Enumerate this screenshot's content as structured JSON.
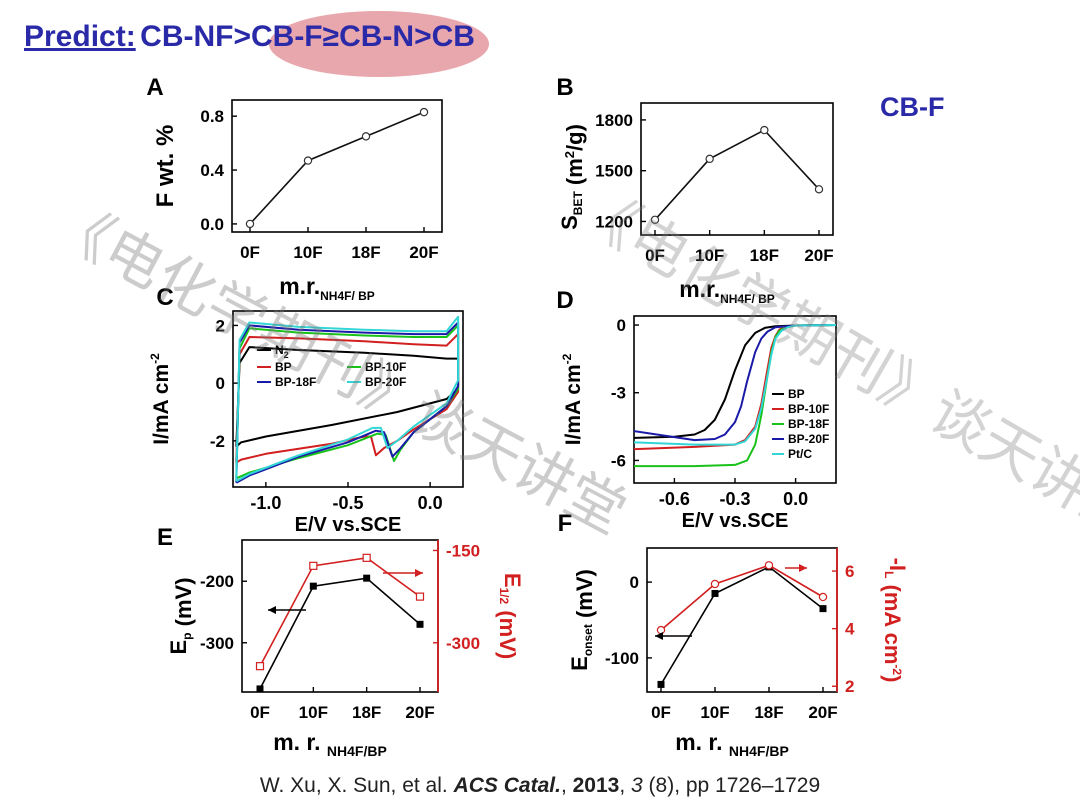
{
  "title": {
    "label": "Predict:",
    "text": "CB-NF>CB-F≥CB-N>CB",
    "highlight_color": "#e8a7ad",
    "color": "#2a2aa8"
  },
  "side_label": "CB-F",
  "watermark": "《电化学期刊》谈天讲堂",
  "citation": {
    "authors": "W. Xu, X. Sun, et al. ",
    "journal": "ACS Catal.",
    "sep1": ", ",
    "year": "2013",
    "sep2": ", ",
    "volume": "3",
    "rest": " (8), pp 1726–1729"
  },
  "chart_data": [
    {
      "panel": "A",
      "type": "line",
      "categories": [
        "0F",
        "10F",
        "18F",
        "20F"
      ],
      "series": [
        {
          "name": "F wt. %",
          "values": [
            0.0,
            0.47,
            0.65,
            0.83
          ],
          "color": "#000000",
          "marker": "open-circle"
        }
      ],
      "ylabel": "F wt. %",
      "xlabel": "m.r.",
      "xlabel_sub": "NH4F/ BP",
      "ylim": [
        -0.06,
        0.92
      ],
      "yticks": [
        0.0,
        0.4,
        0.8
      ],
      "ytick_labels": [
        "0.0",
        "0.4",
        "0.8"
      ]
    },
    {
      "panel": "B",
      "type": "line",
      "categories": [
        "0F",
        "10F",
        "18F",
        "20F"
      ],
      "series": [
        {
          "name": "S BET",
          "values": [
            1210,
            1570,
            1740,
            1390
          ],
          "color": "#000000",
          "marker": "open-circle"
        }
      ],
      "ylabel": "S",
      "ylabel_sub": "BET",
      "ylabel_unit": "(m2/g)",
      "xlabel": "m.r.",
      "xlabel_sub": "NH4F/ BP",
      "ylim": [
        1120,
        1900
      ],
      "yticks": [
        1200,
        1500,
        1800
      ],
      "ytick_labels": [
        "1200",
        "1500",
        "1800"
      ]
    },
    {
      "panel": "C",
      "type": "line",
      "xlabel": "E/V vs.SCE",
      "ylabel": "I/mA cm-2",
      "xlim": [
        -1.2,
        0.2
      ],
      "ylim": [
        -3.6,
        2.5
      ],
      "xticks": [
        -1.0,
        -0.5,
        0.0
      ],
      "xtick_labels": [
        "-1.0",
        "-0.5",
        "0.0"
      ],
      "yticks": [
        -2,
        0,
        2
      ],
      "ytick_labels": [
        "-2",
        "0",
        "2"
      ],
      "legend": [
        "N2",
        "BP",
        "BP-10F",
        "BP-18F",
        "BP-20F"
      ],
      "series": [
        {
          "name": "N2",
          "color": "#000000",
          "x": [
            -1.18,
            -1.16,
            -1.1,
            -0.8,
            -0.4,
            -0.1,
            0.1,
            0.17,
            0.17,
            0.1,
            -0.2,
            -0.6,
            -1.0,
            -1.15,
            -1.18
          ],
          "y": [
            -2.2,
            0.7,
            1.25,
            1.15,
            1.05,
            0.95,
            0.85,
            0.85,
            -0.2,
            -0.55,
            -1.0,
            -1.45,
            -1.85,
            -2.05,
            -2.2
          ]
        },
        {
          "name": "BP",
          "color": "#d21f1f",
          "x": [
            -1.18,
            -1.16,
            -1.1,
            -0.8,
            -0.4,
            -0.1,
            0.1,
            0.17,
            0.17,
            0.1,
            -0.1,
            -0.2,
            -0.28,
            -0.33,
            -0.36,
            -0.4,
            -0.6,
            -1.0,
            -1.15,
            -1.18
          ],
          "y": [
            -2.75,
            1.0,
            1.6,
            1.55,
            1.45,
            1.35,
            1.3,
            1.7,
            -0.3,
            -0.9,
            -1.6,
            -2.0,
            -2.25,
            -2.5,
            -1.85,
            -1.85,
            -2.1,
            -2.45,
            -2.65,
            -2.75
          ]
        },
        {
          "name": "BP-10F",
          "color": "#19c219",
          "x": [
            -1.18,
            -1.16,
            -1.1,
            -0.8,
            -0.4,
            -0.1,
            0.1,
            0.17,
            0.17,
            0.1,
            -0.1,
            -0.18,
            -0.22,
            -0.27,
            -0.32,
            -0.5,
            -0.8,
            -1.1,
            -1.18
          ],
          "y": [
            -3.3,
            1.2,
            1.9,
            1.75,
            1.65,
            1.6,
            1.6,
            2.0,
            -0.2,
            -0.8,
            -1.7,
            -2.3,
            -2.7,
            -1.8,
            -1.75,
            -2.15,
            -2.6,
            -3.1,
            -3.3
          ]
        },
        {
          "name": "BP-18F",
          "color": "#1a1aa8",
          "x": [
            -1.18,
            -1.16,
            -1.1,
            -0.8,
            -0.4,
            -0.1,
            0.1,
            0.17,
            0.17,
            0.1,
            -0.1,
            -0.18,
            -0.23,
            -0.28,
            -0.33,
            -0.5,
            -0.8,
            -1.1,
            -1.18
          ],
          "y": [
            -3.45,
            1.4,
            2.0,
            1.85,
            1.75,
            1.7,
            1.7,
            2.1,
            -0.1,
            -0.8,
            -1.7,
            -2.25,
            -2.55,
            -1.7,
            -1.65,
            -2.05,
            -2.55,
            -3.2,
            -3.45
          ]
        },
        {
          "name": "BP-20F",
          "color": "#33d6d6",
          "x": [
            -1.18,
            -1.16,
            -1.1,
            -0.8,
            -0.4,
            -0.1,
            0.1,
            0.17,
            0.17,
            0.1,
            -0.1,
            -0.2,
            -0.26,
            -0.3,
            -0.35,
            -0.5,
            -0.8,
            -1.1,
            -1.18
          ],
          "y": [
            -3.4,
            1.5,
            2.1,
            1.95,
            1.85,
            1.8,
            1.8,
            2.3,
            0.1,
            -0.7,
            -1.5,
            -2.0,
            -2.25,
            -1.55,
            -1.55,
            -1.95,
            -2.5,
            -3.15,
            -3.4
          ]
        }
      ]
    },
    {
      "panel": "D",
      "type": "line",
      "xlabel": "E/V vs.SCE",
      "ylabel": "I/mA cm-2",
      "xlim": [
        -0.8,
        0.2
      ],
      "ylim": [
        -7.0,
        0.4
      ],
      "xticks": [
        -0.6,
        -0.3,
        0.0
      ],
      "xtick_labels": [
        "-0.6",
        "-0.3",
        "0.0"
      ],
      "yticks": [
        0,
        -3,
        -6
      ],
      "ytick_labels": [
        "0",
        "-3",
        "-6"
      ],
      "legend": [
        "BP",
        "BP-10F",
        "BP-18F",
        "BP-20F",
        "Pt/C"
      ],
      "series": [
        {
          "name": "BP",
          "color": "#000000",
          "x": [
            -0.8,
            -0.6,
            -0.5,
            -0.45,
            -0.4,
            -0.35,
            -0.3,
            -0.25,
            -0.2,
            -0.15,
            -0.1,
            0.0,
            0.2
          ],
          "y": [
            -5.0,
            -4.95,
            -4.85,
            -4.65,
            -4.2,
            -3.3,
            -2.0,
            -0.9,
            -0.35,
            -0.12,
            -0.05,
            -0.02,
            0.0
          ]
        },
        {
          "name": "BP-10F",
          "color": "#d21f1f",
          "x": [
            -0.8,
            -0.5,
            -0.3,
            -0.25,
            -0.2,
            -0.17,
            -0.14,
            -0.12,
            -0.1,
            -0.08,
            -0.05,
            0.0,
            0.2
          ],
          "y": [
            -5.5,
            -5.4,
            -5.3,
            -5.1,
            -4.5,
            -3.5,
            -2.0,
            -1.0,
            -0.5,
            -0.2,
            -0.08,
            -0.02,
            0.0
          ]
        },
        {
          "name": "BP-18F",
          "color": "#19c219",
          "x": [
            -0.8,
            -0.5,
            -0.3,
            -0.24,
            -0.2,
            -0.17,
            -0.14,
            -0.12,
            -0.1,
            -0.08,
            -0.05,
            0.0,
            0.2
          ],
          "y": [
            -6.25,
            -6.25,
            -6.2,
            -6.0,
            -5.3,
            -4.0,
            -2.3,
            -1.2,
            -0.55,
            -0.25,
            -0.1,
            -0.02,
            0.0
          ]
        },
        {
          "name": "BP-20F",
          "color": "#1a1aa8",
          "x": [
            -0.8,
            -0.5,
            -0.4,
            -0.35,
            -0.3,
            -0.27,
            -0.24,
            -0.2,
            -0.17,
            -0.14,
            -0.1,
            0.0,
            0.2
          ],
          "y": [
            -4.7,
            -5.1,
            -5.05,
            -4.85,
            -4.3,
            -3.6,
            -2.5,
            -1.2,
            -0.6,
            -0.3,
            -0.1,
            -0.02,
            0.0
          ]
        },
        {
          "name": "Pt/C",
          "color": "#33d6d6",
          "x": [
            -0.8,
            -0.5,
            -0.3,
            -0.25,
            -0.2,
            -0.17,
            -0.14,
            -0.12,
            -0.1,
            -0.07,
            -0.04,
            0.0,
            0.2
          ],
          "y": [
            -5.2,
            -5.3,
            -5.3,
            -5.15,
            -4.6,
            -3.7,
            -2.3,
            -1.3,
            -0.6,
            -0.25,
            -0.1,
            -0.02,
            0.0
          ]
        }
      ]
    },
    {
      "panel": "E",
      "type": "line",
      "categories": [
        "0F",
        "10F",
        "18F",
        "20F"
      ],
      "xlabel": "m. r.",
      "xlabel_sub": "NH4F/BP",
      "ylabel": "E",
      "ylabel_sub": "p",
      "ylabel_unit": "(mV)",
      "ylim": [
        -380,
        -133
      ],
      "yticks": [
        -200,
        -300
      ],
      "ytick_labels": [
        "-200",
        "-300"
      ],
      "ylabel_right": "E",
      "ylabel_right_sub": "1/2",
      "ylabel_right_unit": "(mV)",
      "ylim_right": [
        -380,
        -133
      ],
      "yticks_right": [
        -150,
        -300
      ],
      "ytick_labels_right": [
        "-150",
        "-300"
      ],
      "series": [
        {
          "name": "Ep",
          "axis": "left",
          "color": "#000000",
          "marker": "filled-square",
          "values": [
            -375,
            -208,
            -195,
            -270
          ]
        },
        {
          "name": "E1/2",
          "axis": "right",
          "color": "#d21f1f",
          "marker": "open-square",
          "values": [
            -338,
            -175,
            -162,
            -225
          ]
        }
      ]
    },
    {
      "panel": "F",
      "type": "line",
      "categories": [
        "0F",
        "10F",
        "18F",
        "20F"
      ],
      "xlabel": "m. r.",
      "xlabel_sub": "NH4F/BP",
      "ylabel": "E",
      "ylabel_sub": "onset",
      "ylabel_unit": "(mV)",
      "ylim": [
        -145,
        45
      ],
      "yticks": [
        0,
        -100
      ],
      "ytick_labels": [
        "0",
        "-100"
      ],
      "ylabel_right": "-I",
      "ylabel_right_sub": "L",
      "ylabel_right_unit": "(mA cm-2)",
      "ylim_right": [
        1.8,
        6.8
      ],
      "yticks_right": [
        6,
        4,
        2
      ],
      "ytick_labels_right": [
        "6",
        "4",
        "2"
      ],
      "series": [
        {
          "name": "Eonset",
          "axis": "left",
          "color": "#000000",
          "marker": "filled-square",
          "values": [
            -135,
            -15,
            20,
            -35
          ]
        },
        {
          "name": "-IL",
          "axis": "right",
          "color": "#d21f1f",
          "marker": "open-circle",
          "values": [
            3.95,
            5.55,
            6.2,
            5.1
          ]
        }
      ]
    }
  ]
}
